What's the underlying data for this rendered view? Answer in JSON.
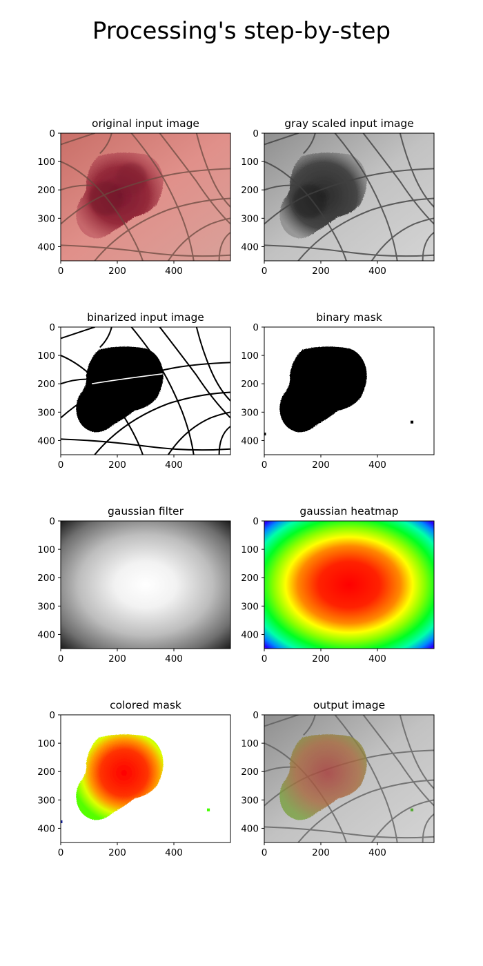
{
  "figure": {
    "title": "Processing's step-by-step"
  },
  "chart_data": [
    {
      "type": "image",
      "title": "original input image",
      "content": "dermoscopy photo of a dark red-brown skin lesion with hairs on pink skin",
      "xticks": [
        0,
        200,
        400
      ],
      "yticks": [
        0,
        100,
        200,
        300,
        400
      ],
      "xlim": [
        0,
        600
      ],
      "ylim": [
        450,
        0
      ]
    },
    {
      "type": "image",
      "title": "gray scaled input image",
      "content": "grayscale version of the lesion photo",
      "xticks": [
        0,
        200,
        400
      ],
      "yticks": [
        0,
        100,
        200,
        300,
        400
      ],
      "xlim": [
        0,
        600
      ],
      "ylim": [
        450,
        0
      ]
    },
    {
      "type": "image",
      "title": "binarized input image",
      "content": "black lesion and black hair lines on white background",
      "xticks": [
        0,
        200,
        400
      ],
      "yticks": [
        0,
        100,
        200,
        300,
        400
      ],
      "xlim": [
        0,
        600
      ],
      "ylim": [
        450,
        0
      ]
    },
    {
      "type": "image",
      "title": "binary mask",
      "content": "solid black lesion blob on white with two small black specks",
      "xticks": [
        0,
        200,
        400
      ],
      "yticks": [
        0,
        100,
        200,
        300,
        400
      ],
      "xlim": [
        0,
        600
      ],
      "ylim": [
        450,
        0
      ]
    },
    {
      "type": "image",
      "title": "gaussian filter",
      "content": "grayscale radial gaussian, white center fading to black corners",
      "xticks": [
        0,
        200,
        400
      ],
      "yticks": [
        0,
        100,
        200,
        300,
        400
      ],
      "xlim": [
        0,
        600
      ],
      "ylim": [
        450,
        0
      ]
    },
    {
      "type": "image",
      "title": "gaussian heatmap",
      "content": "gaussian rendered with hsv colormap, red center through yellow green cyan to blue purple corners",
      "xticks": [
        0,
        200,
        400
      ],
      "yticks": [
        0,
        100,
        200,
        300,
        400
      ],
      "xlim": [
        0,
        600
      ],
      "ylim": [
        450,
        0
      ]
    },
    {
      "type": "image",
      "title": "colored mask",
      "content": "lesion mask region filled with heatmap colors on white",
      "xticks": [
        0,
        200,
        400
      ],
      "yticks": [
        0,
        100,
        200,
        300,
        400
      ],
      "xlim": [
        0,
        600
      ],
      "ylim": [
        450,
        0
      ]
    },
    {
      "type": "image",
      "title": "output image",
      "content": "grayscale photo with colored mask blended over the lesion",
      "xticks": [
        0,
        200,
        400
      ],
      "yticks": [
        0,
        100,
        200,
        300,
        400
      ],
      "xlim": [
        0,
        600
      ],
      "ylim": [
        450,
        0
      ]
    }
  ],
  "colors": {
    "skin": "#d9776f",
    "lesion": "#8a2232",
    "heat_center": "#ff0000",
    "heat_edge": "#4b00ff"
  }
}
